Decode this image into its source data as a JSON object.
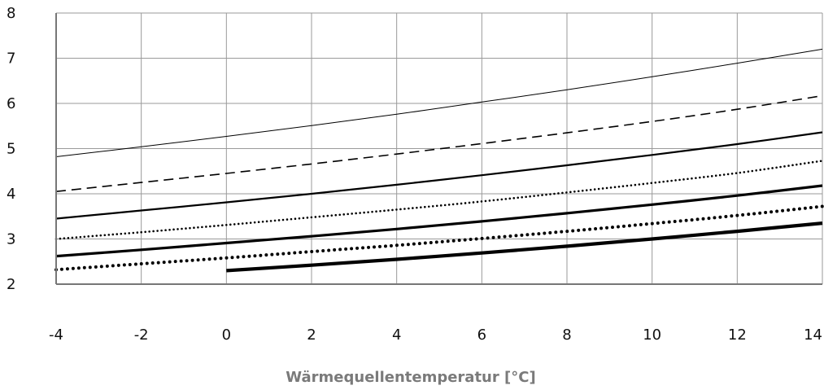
{
  "chart_data": {
    "type": "line",
    "title": "",
    "xlabel": "Wärmequellentemperatur [°C]",
    "ylabel": "",
    "xlim": [
      -4,
      14
    ],
    "ylim": [
      2,
      8
    ],
    "xticks": [
      "-4",
      "-2",
      "0",
      "2",
      "4",
      "6",
      "8",
      "10",
      "12",
      "14"
    ],
    "yticks": [
      "2",
      "3",
      "4",
      "5",
      "6",
      "7",
      "8"
    ],
    "grid": true,
    "legend": "none",
    "series": [
      {
        "style": "thin-solid",
        "x": [
          -4,
          -2,
          0,
          2,
          4,
          6,
          8,
          10,
          12,
          14
        ],
        "y": [
          4.82,
          5.04,
          5.27,
          5.51,
          5.76,
          6.03,
          6.3,
          6.59,
          6.89,
          7.2
        ]
      },
      {
        "style": "dashed",
        "x": [
          -4,
          -2,
          0,
          2,
          4,
          6,
          8,
          10,
          12,
          14
        ],
        "y": [
          4.05,
          4.25,
          4.45,
          4.66,
          4.88,
          5.11,
          5.35,
          5.6,
          5.87,
          6.17
        ]
      },
      {
        "style": "medium-solid",
        "x": [
          -4,
          -2,
          0,
          2,
          4,
          6,
          8,
          10,
          12,
          14
        ],
        "y": [
          3.45,
          3.63,
          3.81,
          4.0,
          4.2,
          4.41,
          4.63,
          4.86,
          5.1,
          5.36
        ]
      },
      {
        "style": "fine-dotted",
        "x": [
          -4,
          -2,
          0,
          2,
          4,
          6,
          8,
          10,
          12,
          14
        ],
        "y": [
          3.0,
          3.15,
          3.31,
          3.48,
          3.65,
          3.83,
          4.03,
          4.24,
          4.46,
          4.73
        ]
      },
      {
        "style": "thick-solid",
        "x": [
          -4,
          -2,
          0,
          2,
          4,
          6,
          8,
          10,
          12,
          14
        ],
        "y": [
          2.62,
          2.76,
          2.91,
          3.06,
          3.22,
          3.39,
          3.57,
          3.76,
          3.96,
          4.18
        ]
      },
      {
        "style": "bold-dotted",
        "x": [
          -4,
          -2,
          0,
          2,
          4,
          6,
          8,
          10,
          12,
          14
        ],
        "y": [
          2.32,
          2.45,
          2.58,
          2.72,
          2.86,
          3.01,
          3.17,
          3.34,
          3.52,
          3.72
        ]
      },
      {
        "style": "extra-thick-solid",
        "x": [
          0,
          2,
          4,
          6,
          8,
          10,
          12,
          14
        ],
        "y": [
          2.3,
          2.42,
          2.55,
          2.69,
          2.84,
          3.0,
          3.17,
          3.35
        ]
      }
    ]
  }
}
